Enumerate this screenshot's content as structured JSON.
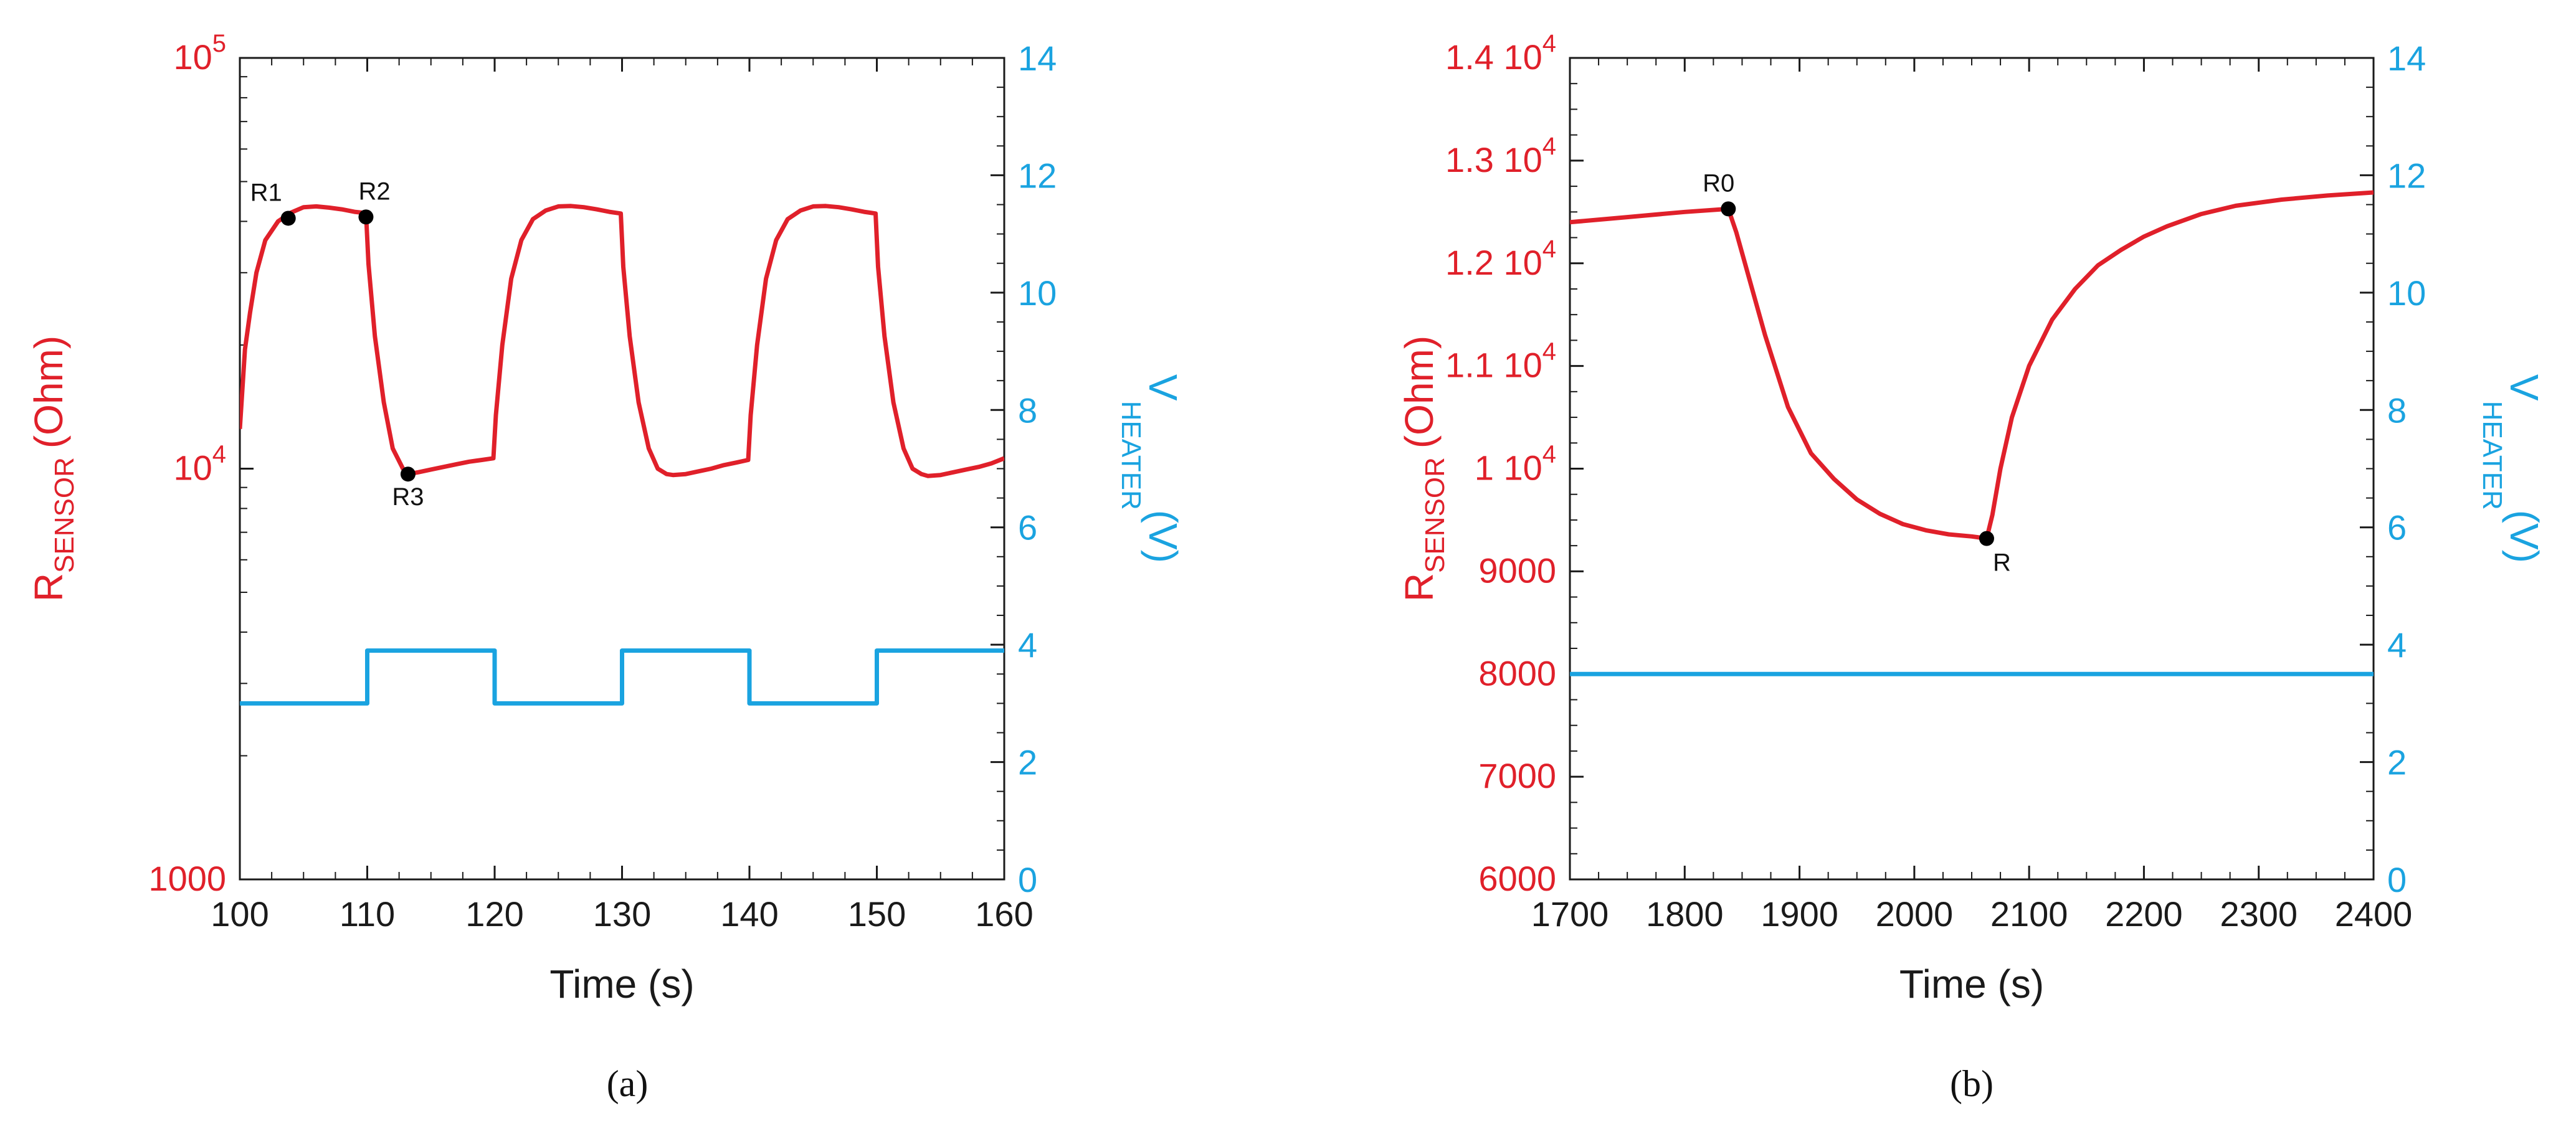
{
  "colors": {
    "resistance": "#e0202a",
    "voltage": "#1aa3e0",
    "frame": "#1a1a1a",
    "marker": "#000000"
  },
  "chart_data": [
    {
      "id": "a",
      "type": "line",
      "caption": "(a)",
      "xlabel": "Time (s)",
      "xlim": [
        100,
        160
      ],
      "x_ticks": [
        100,
        110,
        120,
        130,
        140,
        150,
        160
      ],
      "x_tick_labels": [
        "100",
        "110",
        "120",
        "130",
        "140",
        "150",
        "160"
      ],
      "left_axis": {
        "label_main": "R",
        "label_sub": "SENSOR",
        "label_unit": "(Ohm)",
        "scale": "log",
        "ylim": [
          1000,
          100000
        ],
        "ticks": [
          {
            "value": 1000,
            "base": "1000",
            "exp": ""
          },
          {
            "value": 10000,
            "base": "10",
            "exp": "4"
          },
          {
            "value": 100000,
            "base": "10",
            "exp": "5"
          }
        ]
      },
      "right_axis": {
        "label_main": "V",
        "label_sub": "HEATER",
        "label_unit": "(V)",
        "scale": "linear",
        "ylim": [
          0,
          14
        ],
        "ticks": [
          0,
          2,
          4,
          6,
          8,
          10,
          12,
          14
        ],
        "tick_labels": [
          "0",
          "2",
          "4",
          "6",
          "8",
          "10",
          "12",
          "14"
        ]
      },
      "series": [
        {
          "name": "R_SENSOR",
          "axis": "left",
          "x": [
            100,
            100.4,
            100.8,
            101.3,
            102,
            103,
            104,
            105,
            106,
            107,
            108,
            109,
            109.9,
            110.1,
            110.6,
            111.3,
            112,
            112.8,
            113.2,
            114,
            115,
            116,
            117,
            118,
            119,
            119.9,
            120.1,
            120.6,
            121.3,
            122.1,
            123,
            124,
            125,
            126,
            127,
            128,
            129,
            129.9,
            130.1,
            130.6,
            131.3,
            132.1,
            132.8,
            133.5,
            134,
            135,
            136,
            137,
            138,
            139,
            139.9,
            140.1,
            140.6,
            141.3,
            142.1,
            143,
            144,
            145,
            146,
            147,
            148,
            149,
            149.9,
            150.1,
            150.6,
            151.3,
            152.1,
            152.8,
            153.5,
            154,
            155,
            156,
            157,
            158,
            159,
            160
          ],
          "y": [
            12500,
            19500,
            24000,
            30000,
            36000,
            40000,
            42000,
            43300,
            43500,
            43200,
            42800,
            42200,
            41900,
            31500,
            21000,
            14500,
            11200,
            10000,
            9700,
            9800,
            9950,
            10100,
            10250,
            10400,
            10500,
            10600,
            13500,
            20000,
            29000,
            36000,
            40500,
            42500,
            43500,
            43600,
            43300,
            42800,
            42200,
            41800,
            31000,
            21000,
            14500,
            11200,
            10000,
            9700,
            9650,
            9700,
            9850,
            10000,
            10200,
            10350,
            10500,
            13500,
            20000,
            29000,
            36000,
            40500,
            42500,
            43500,
            43600,
            43300,
            42800,
            42200,
            41800,
            31000,
            21000,
            14500,
            11200,
            10000,
            9700,
            9600,
            9650,
            9800,
            9950,
            10100,
            10300,
            10600
          ]
        },
        {
          "name": "V_HEATER",
          "axis": "right",
          "step": true,
          "x": [
            100,
            110,
            110,
            120,
            120,
            130,
            130,
            140,
            140,
            150,
            150,
            160
          ],
          "y": [
            3.0,
            3.0,
            3.9,
            3.9,
            3.0,
            3.0,
            3.9,
            3.9,
            3.0,
            3.0,
            3.9,
            3.9
          ]
        }
      ],
      "annotations": [
        {
          "label": "R1",
          "x": 103.8,
          "y": 40700,
          "text_pos": "above-left"
        },
        {
          "label": "R2",
          "x": 109.9,
          "y": 41000,
          "text_pos": "above-right"
        },
        {
          "label": "R3",
          "x": 113.2,
          "y": 9700,
          "text_pos": "below"
        }
      ]
    },
    {
      "id": "b",
      "type": "line",
      "caption": "(b)",
      "xlabel": "Time (s)",
      "xlim": [
        1700,
        2400
      ],
      "x_ticks": [
        1700,
        1800,
        1900,
        2000,
        2100,
        2200,
        2300,
        2400
      ],
      "x_tick_labels": [
        "1700",
        "1800",
        "1900",
        "2000",
        "2100",
        "2200",
        "2300",
        "2400"
      ],
      "left_axis": {
        "label_main": "R",
        "label_sub": "SENSOR",
        "label_unit": "(Ohm)",
        "scale": "linear",
        "ylim": [
          6000,
          14000
        ],
        "ticks": [
          {
            "value": 6000,
            "base": "6000",
            "exp": ""
          },
          {
            "value": 7000,
            "base": "7000",
            "exp": ""
          },
          {
            "value": 8000,
            "base": "8000",
            "exp": ""
          },
          {
            "value": 9000,
            "base": "9000",
            "exp": ""
          },
          {
            "value": 10000,
            "base": "1 10",
            "exp": "4"
          },
          {
            "value": 11000,
            "base": "1.1 10",
            "exp": "4"
          },
          {
            "value": 12000,
            "base": "1.2 10",
            "exp": "4"
          },
          {
            "value": 13000,
            "base": "1.3 10",
            "exp": "4"
          },
          {
            "value": 14000,
            "base": "1.4 10",
            "exp": "4"
          }
        ]
      },
      "right_axis": {
        "label_main": "V",
        "label_sub": "HEATER",
        "label_unit": "(V)",
        "scale": "linear",
        "ylim": [
          0,
          14
        ],
        "ticks": [
          0,
          2,
          4,
          6,
          8,
          10,
          12,
          14
        ],
        "tick_labels": [
          "0",
          "2",
          "4",
          "6",
          "8",
          "10",
          "12",
          "14"
        ]
      },
      "series": [
        {
          "name": "R_SENSOR",
          "axis": "left",
          "x": [
            1700,
            1750,
            1800,
            1838,
            1845,
            1855,
            1870,
            1890,
            1910,
            1930,
            1950,
            1970,
            1990,
            2010,
            2030,
            2050,
            2063,
            2068,
            2075,
            2085,
            2100,
            2120,
            2140,
            2160,
            2180,
            2200,
            2220,
            2250,
            2280,
            2320,
            2360,
            2400
          ],
          "y": [
            12400,
            12450,
            12500,
            12530,
            12300,
            11900,
            11300,
            10600,
            10150,
            9900,
            9700,
            9560,
            9460,
            9400,
            9360,
            9340,
            9320,
            9550,
            10000,
            10500,
            11000,
            11450,
            11750,
            11980,
            12130,
            12260,
            12360,
            12480,
            12560,
            12620,
            12660,
            12690
          ]
        },
        {
          "name": "V_HEATER",
          "axis": "right",
          "step": false,
          "x": [
            1700,
            2400
          ],
          "y": [
            3.5,
            3.5
          ]
        }
      ],
      "annotations": [
        {
          "label": "R0",
          "x": 1838,
          "y": 12530,
          "text_pos": "above-left"
        },
        {
          "label": "R",
          "x": 2063,
          "y": 9320,
          "text_pos": "below-right"
        }
      ]
    }
  ]
}
